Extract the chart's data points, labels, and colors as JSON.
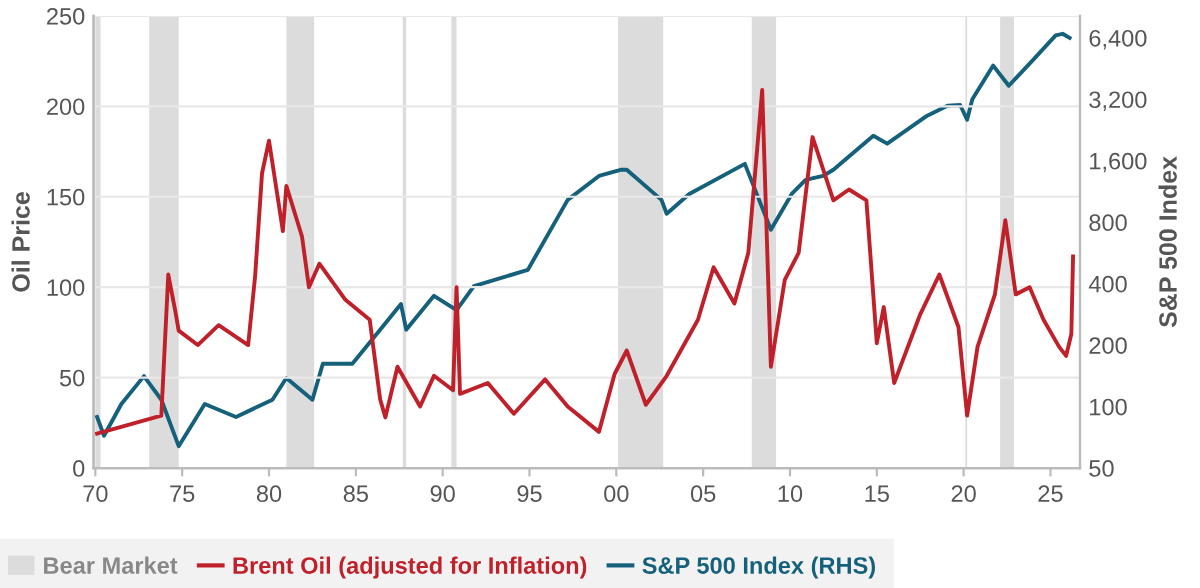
{
  "chart_data": {
    "type": "line",
    "ylabel": "Oil Price",
    "y2label": "S&P 500 Index",
    "series": [
      {
        "name": "Brent Oil (adjusted for Inflation)",
        "color": "#c0202a",
        "x": [
          1970.1,
          1973.8,
          1974.2,
          1974.6,
          1974.8,
          1975.9,
          1977.1,
          1978.8,
          1979.2,
          1979.6,
          1980.0,
          1980.8,
          1981.0,
          1981.9,
          1982.3,
          1982.9,
          1984.4,
          1985.8,
          1986.4,
          1986.7,
          1987.4,
          1988.7,
          1989.5,
          1990.6,
          1990.8,
          1991.0,
          1992.6,
          1994.1,
          1995.9,
          1997.2,
          1999.0,
          1999.9,
          2000.6,
          2001.7,
          2002.9,
          2004.7,
          2005.6,
          2006.8,
          2007.6,
          2008.4,
          2008.9,
          2009.7,
          2010.5,
          2011.3,
          2012.5,
          2013.4,
          2014.4,
          2015.0,
          2015.4,
          2016.0,
          2017.5,
          2018.6,
          2019.7,
          2020.2,
          2020.8,
          2021.8,
          2022.4,
          2023.0,
          2023.8,
          2024.6,
          2025.5,
          2025.9,
          2026.2,
          2026.3
        ],
        "values": [
          19,
          29,
          107,
          87,
          76,
          68,
          79,
          68,
          106,
          163,
          181,
          131,
          156,
          128,
          100,
          113,
          93,
          82,
          38,
          28,
          56,
          34,
          51,
          43,
          100,
          41,
          47,
          30,
          49,
          34,
          20,
          52,
          65,
          35,
          51,
          82,
          111,
          91,
          119,
          209,
          56,
          104,
          119,
          183,
          148,
          154,
          148,
          69,
          89,
          47,
          85,
          107,
          78,
          29,
          67,
          96,
          137,
          96,
          100,
          82,
          67,
          62,
          74,
          117
        ]
      },
      {
        "name": "S&P 500 Index (RHS)",
        "color": "#15607a",
        "axis": "y2",
        "x": [
          1970.1,
          1970.5,
          1971.5,
          1972.8,
          1973.8,
          1974.8,
          1976.3,
          1978.1,
          1980.2,
          1981.0,
          1982.5,
          1983.1,
          1984.8,
          1986.4,
          1987.6,
          1987.9,
          1989.5,
          1990.8,
          1991.8,
          1994.9,
          1997.2,
          1999.0,
          2000.3,
          2000.6,
          2002.6,
          2002.9,
          2004.2,
          2007.4,
          2008.9,
          2010.1,
          2010.9,
          2011.9,
          2012.5,
          2014.8,
          2015.6,
          2017.9,
          2019.1,
          2019.8,
          2020.2,
          2020.5,
          2021.7,
          2022.6,
          2024.0,
          2025.3,
          2025.7,
          2026.1
        ],
        "values": [
          89,
          72,
          103,
          141,
          108,
          64,
          103,
          89,
          108,
          138,
          108,
          162,
          162,
          238,
          318,
          238,
          349,
          297,
          389,
          467,
          1029,
          1348,
          1446,
          1446,
          1029,
          880,
          1100,
          1545,
          735,
          1100,
          1290,
          1348,
          1446,
          2120,
          1940,
          2660,
          2980,
          3000,
          2540,
          3200,
          4680,
          3730,
          4990,
          6580,
          6700,
          6400
        ]
      }
    ],
    "bands": [
      {
        "axis": "x",
        "from": 1973.1,
        "to": 1974.8,
        "label": "Bear Market",
        "color": "#dcdcdc"
      },
      {
        "axis": "x",
        "from": 1970.0,
        "to": 1970.3,
        "color": "#dcdcdc"
      },
      {
        "axis": "x",
        "from": 1981.0,
        "to": 1982.6,
        "color": "#dcdcdc"
      },
      {
        "axis": "x",
        "from": 1987.7,
        "to": 1987.9,
        "color": "#dcdcdc"
      },
      {
        "axis": "x",
        "from": 1990.5,
        "to": 1990.8,
        "color": "#dcdcdc"
      },
      {
        "axis": "x",
        "from": 2000.1,
        "to": 2002.7,
        "color": "#dcdcdc"
      },
      {
        "axis": "x",
        "from": 2007.8,
        "to": 2009.2,
        "color": "#dcdcdc"
      },
      {
        "axis": "x",
        "from": 2020.1,
        "to": 2020.2,
        "color": "#dcdcdc"
      },
      {
        "axis": "x",
        "from": 2022.1,
        "to": 2022.9,
        "color": "#dcdcdc"
      }
    ],
    "xlim": [
      1969.9,
      2026.7
    ],
    "xticks": [
      {
        "value": 1970,
        "label": "70"
      },
      {
        "value": 1975,
        "label": "75"
      },
      {
        "value": 1980,
        "label": "80"
      },
      {
        "value": 1985,
        "label": "85"
      },
      {
        "value": 1990,
        "label": "90"
      },
      {
        "value": 1995,
        "label": "95"
      },
      {
        "value": 2000,
        "label": "00"
      },
      {
        "value": 2005,
        "label": "05"
      },
      {
        "value": 2010,
        "label": "10"
      },
      {
        "value": 2015,
        "label": "15"
      },
      {
        "value": 2020,
        "label": "20"
      },
      {
        "value": 2025,
        "label": "25"
      }
    ],
    "ylim": [
      0,
      250
    ],
    "yticks": [
      0,
      50,
      100,
      150,
      200,
      250
    ],
    "y2lim": [
      50,
      8200
    ],
    "y2ticks": [
      50,
      100,
      200,
      400,
      800,
      {
        "value": 1600,
        "label": "1,600"
      },
      {
        "value": 3200,
        "label": "3,200"
      },
      {
        "value": 6400,
        "label": "6,400"
      }
    ],
    "log": "y2",
    "grid": "y",
    "legend": "bottom"
  }
}
